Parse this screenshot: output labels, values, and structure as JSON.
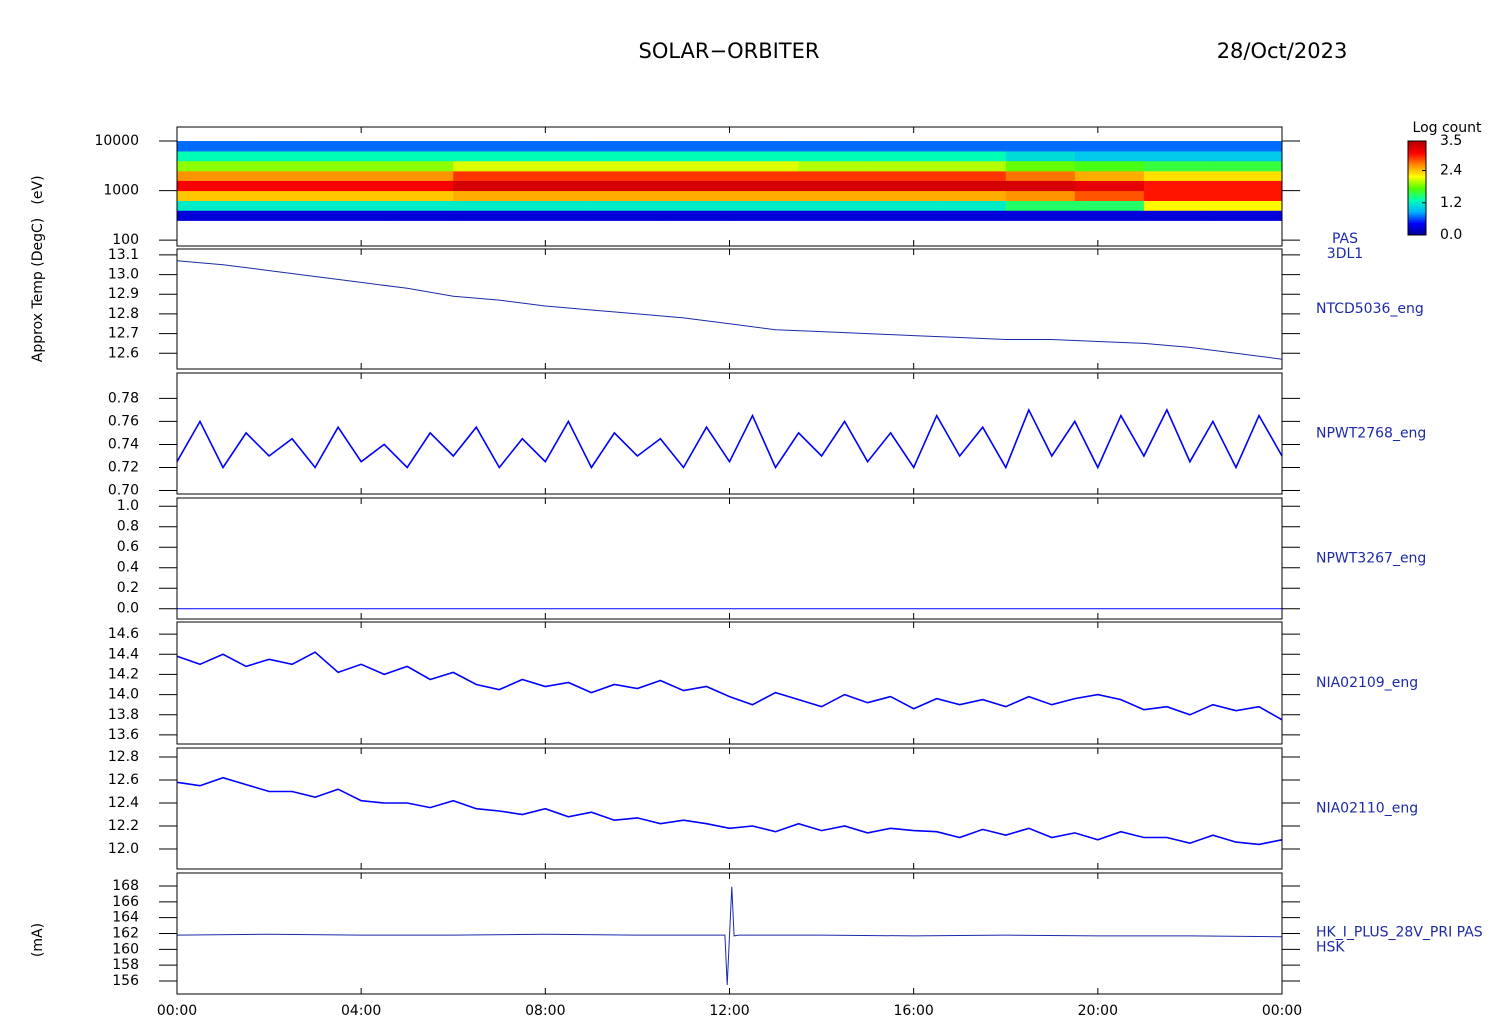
{
  "header": {
    "title": "SOLAR−ORBITER",
    "date": "28/Oct/2023"
  },
  "chart_data": [
    {
      "type": "heatmap",
      "ylabel": "(eV)",
      "label": [
        "PAS",
        "3DL1"
      ],
      "ylog": true,
      "ylim": [
        76,
        19200
      ],
      "yticks": [
        100,
        1000,
        10000
      ],
      "x_edges": [
        0,
        1.5,
        3,
        4.5,
        6,
        7.5,
        9,
        10.5,
        12,
        13.5,
        15,
        16.5,
        18,
        19.5,
        21,
        22.5,
        24
      ],
      "y_edges": [
        250,
        400,
        630,
        1000,
        1600,
        2500,
        4000,
        6300,
        10000
      ],
      "values": [
        [
          0.3,
          0.3,
          0.3,
          0.3,
          0.3,
          0.3,
          0.3,
          0.3,
          0.3,
          0.3,
          0.3,
          0.3,
          0.3,
          0.3,
          0.3,
          0.3
        ],
        [
          1.2,
          1.2,
          1.2,
          1.2,
          1.2,
          1.2,
          1.2,
          1.2,
          1.2,
          1.2,
          1.2,
          1.2,
          1.5,
          1.5,
          2.2,
          2.2
        ],
        [
          2.4,
          2.4,
          2.4,
          2.4,
          2.5,
          2.5,
          2.5,
          2.5,
          2.5,
          2.5,
          2.5,
          2.5,
          2.6,
          2.8,
          3.0,
          3.0
        ],
        [
          3.1,
          3.1,
          3.1,
          3.1,
          3.3,
          3.3,
          3.3,
          3.3,
          3.3,
          3.3,
          3.3,
          3.3,
          3.3,
          3.2,
          3.0,
          3.0
        ],
        [
          2.6,
          2.6,
          2.6,
          2.6,
          2.9,
          2.9,
          2.9,
          2.9,
          2.9,
          2.9,
          2.9,
          2.9,
          2.7,
          2.5,
          2.3,
          2.3
        ],
        [
          1.9,
          1.9,
          1.9,
          1.9,
          2.1,
          2.1,
          2.1,
          2.1,
          2.1,
          2.0,
          2.0,
          2.0,
          1.8,
          1.7,
          1.6,
          1.6
        ],
        [
          1.3,
          1.3,
          1.3,
          1.3,
          1.3,
          1.3,
          1.3,
          1.3,
          1.3,
          1.3,
          1.3,
          1.3,
          1.1,
          1.0,
          1.0,
          1.0
        ],
        [
          0.7,
          0.7,
          0.7,
          0.7,
          0.7,
          0.7,
          0.7,
          0.7,
          0.7,
          0.7,
          0.7,
          0.7,
          0.7,
          0.7,
          0.7,
          0.7
        ]
      ],
      "zlim": [
        0,
        3.5
      ],
      "colorbar_title": "Log count",
      "colorbar_ticks": [
        {
          "value": 0,
          "label": "0.0"
        },
        {
          "value": 1.2,
          "label": "1.2"
        },
        {
          "value": 2.4,
          "label": "2.4"
        },
        {
          "value": 3.5,
          "label": "3.5"
        }
      ],
      "colorscale": [
        "#00008c",
        "#0000ff",
        "#00b4ff",
        "#00ffb4",
        "#50ff00",
        "#ffff00",
        "#ff8c00",
        "#ff0000",
        "#b40000"
      ]
    },
    {
      "type": "line",
      "ylabel": "Approx Temp (DegC)",
      "label": [
        "NTCD5036_eng"
      ],
      "color": "#1c2aa8",
      "ylim": [
        12.52,
        13.13
      ],
      "yticks": [
        12.6,
        12.7,
        12.8,
        12.9,
        {
          "value": 13,
          "label": "13.0"
        },
        13.1
      ],
      "x": [
        0,
        1,
        2,
        3,
        4,
        5,
        6,
        7,
        8,
        9,
        10,
        11,
        12,
        13,
        14,
        15,
        16,
        17,
        18,
        19,
        20,
        21,
        22,
        23,
        24
      ],
      "values": [
        13.07,
        13.05,
        13.02,
        12.99,
        12.96,
        12.93,
        12.89,
        12.87,
        12.84,
        12.82,
        12.8,
        12.78,
        12.75,
        12.72,
        12.71,
        12.7,
        12.69,
        12.68,
        12.67,
        12.67,
        12.66,
        12.65,
        12.63,
        12.6,
        12.57
      ]
    },
    {
      "type": "line",
      "label": [
        "NPWT2768_eng"
      ],
      "color": "#0000ff",
      "ylim": [
        0.697,
        0.802
      ],
      "yticks": [
        {
          "value": 0.7,
          "label": "0.70"
        },
        0.72,
        0.74,
        0.76,
        0.78
      ],
      "x": [
        0,
        0.5,
        1,
        1.5,
        2,
        2.5,
        3,
        3.5,
        4,
        4.5,
        5,
        5.5,
        6,
        6.5,
        7,
        7.5,
        8,
        8.5,
        9,
        9.5,
        10,
        10.5,
        11,
        11.5,
        12,
        12.5,
        13,
        13.5,
        14,
        14.5,
        15,
        15.5,
        16,
        16.5,
        17,
        17.5,
        18,
        18.5,
        19,
        19.5,
        20,
        20.5,
        21,
        21.5,
        22,
        22.5,
        23,
        23.5,
        24
      ],
      "values": [
        0.725,
        0.76,
        0.72,
        0.75,
        0.73,
        0.745,
        0.72,
        0.755,
        0.725,
        0.74,
        0.72,
        0.75,
        0.73,
        0.755,
        0.72,
        0.745,
        0.725,
        0.76,
        0.72,
        0.75,
        0.73,
        0.745,
        0.72,
        0.755,
        0.725,
        0.765,
        0.72,
        0.75,
        0.73,
        0.76,
        0.725,
        0.75,
        0.72,
        0.765,
        0.73,
        0.755,
        0.72,
        0.77,
        0.73,
        0.76,
        0.72,
        0.765,
        0.73,
        0.77,
        0.725,
        0.76,
        0.72,
        0.765,
        0.73
      ]
    },
    {
      "type": "line",
      "label": [
        "NPWT3267_eng"
      ],
      "color": "#0000ff",
      "ylim": [
        -0.1,
        1.08
      ],
      "yticks": [
        {
          "value": 0,
          "label": "0.0"
        },
        0.2,
        0.4,
        0.6,
        0.8,
        {
          "value": 1,
          "label": "1.0"
        }
      ],
      "x": [
        0,
        24
      ],
      "values": [
        0,
        0
      ]
    },
    {
      "type": "line",
      "label": [
        "NIA02109_eng"
      ],
      "color": "#0000ff",
      "ylim": [
        13.51,
        14.72
      ],
      "yticks": [
        13.6,
        13.8,
        {
          "value": 14,
          "label": "14.0"
        },
        14.2,
        14.4,
        14.6
      ],
      "x": [
        0,
        0.5,
        1,
        1.5,
        2,
        2.5,
        3,
        3.5,
        4,
        4.5,
        5,
        5.5,
        6,
        6.5,
        7,
        7.5,
        8,
        8.5,
        9,
        9.5,
        10,
        10.5,
        11,
        11.5,
        12,
        12.5,
        13,
        13.5,
        14,
        14.5,
        15,
        15.5,
        16,
        16.5,
        17,
        17.5,
        18,
        18.5,
        19,
        19.5,
        20,
        20.5,
        21,
        21.5,
        22,
        22.5,
        23,
        23.5,
        24
      ],
      "values": [
        14.38,
        14.3,
        14.4,
        14.28,
        14.35,
        14.3,
        14.42,
        14.22,
        14.3,
        14.2,
        14.28,
        14.15,
        14.22,
        14.1,
        14.05,
        14.15,
        14.08,
        14.12,
        14.02,
        14.1,
        14.06,
        14.14,
        14.04,
        14.08,
        13.98,
        13.9,
        14.02,
        13.95,
        13.88,
        14.0,
        13.92,
        13.98,
        13.86,
        13.96,
        13.9,
        13.95,
        13.88,
        13.98,
        13.9,
        13.96,
        14.0,
        13.95,
        13.85,
        13.88,
        13.8,
        13.9,
        13.84,
        13.88,
        13.75
      ]
    },
    {
      "type": "line",
      "label": [
        "NIA02110_eng"
      ],
      "color": "#0000ff",
      "ylim": [
        11.826,
        12.878
      ],
      "yticks": [
        {
          "value": 12,
          "label": "12.0"
        },
        12.2,
        12.4,
        12.6,
        12.8
      ],
      "x": [
        0,
        0.5,
        1,
        1.5,
        2,
        2.5,
        3,
        3.5,
        4,
        4.5,
        5,
        5.5,
        6,
        6.5,
        7,
        7.5,
        8,
        8.5,
        9,
        9.5,
        10,
        10.5,
        11,
        11.5,
        12,
        12.5,
        13,
        13.5,
        14,
        14.5,
        15,
        15.5,
        16,
        16.5,
        17,
        17.5,
        18,
        18.5,
        19,
        19.5,
        20,
        20.5,
        21,
        21.5,
        22,
        22.5,
        23,
        23.5,
        24
      ],
      "values": [
        12.58,
        12.55,
        12.62,
        12.56,
        12.5,
        12.5,
        12.45,
        12.52,
        12.42,
        12.4,
        12.4,
        12.36,
        12.42,
        12.35,
        12.33,
        12.3,
        12.35,
        12.28,
        12.32,
        12.25,
        12.27,
        12.22,
        12.25,
        12.22,
        12.18,
        12.2,
        12.15,
        12.22,
        12.16,
        12.2,
        12.14,
        12.18,
        12.16,
        12.15,
        12.1,
        12.17,
        12.12,
        12.18,
        12.1,
        12.14,
        12.08,
        12.15,
        12.1,
        12.1,
        12.05,
        12.12,
        12.06,
        12.04,
        12.08
      ]
    },
    {
      "type": "line",
      "ylabel": "(mA)",
      "label": [
        "HK_I_PLUS_28V_PRI PAS",
        "HSK"
      ],
      "color": "#1c2aa8",
      "ylim": [
        154.36,
        169.64
      ],
      "yticks": [
        156,
        158,
        160,
        162,
        164,
        166,
        168
      ],
      "x": [
        0,
        2,
        4,
        6,
        8,
        10,
        11.9,
        11.95,
        12.05,
        12.1,
        12.2,
        14,
        16,
        18,
        20,
        22,
        24
      ],
      "values": [
        161.8,
        161.9,
        161.8,
        161.8,
        161.9,
        161.8,
        161.8,
        155.5,
        167.9,
        161.7,
        161.8,
        161.8,
        161.7,
        161.8,
        161.7,
        161.7,
        161.6
      ],
      "xlim": [
        0,
        24
      ],
      "xticks": [
        {
          "value": 0,
          "label": "00:00"
        },
        {
          "value": 4,
          "label": "04:00"
        },
        {
          "value": 8,
          "label": "08:00"
        },
        {
          "value": 12,
          "label": "12:00"
        },
        {
          "value": 16,
          "label": "16:00"
        },
        {
          "value": 20,
          "label": "20:00"
        },
        {
          "value": 24,
          "label": "00:00"
        }
      ]
    }
  ]
}
